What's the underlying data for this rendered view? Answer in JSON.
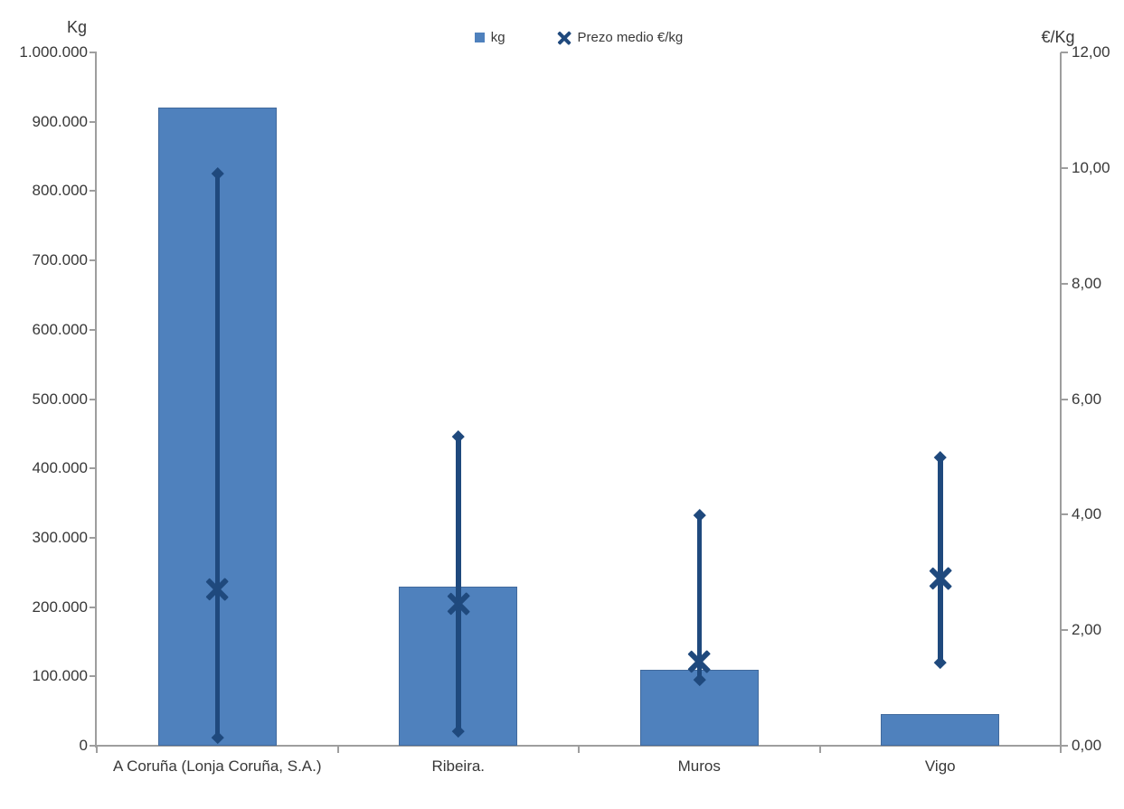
{
  "chart": {
    "legend": [
      {
        "label": "kg",
        "marker": "square",
        "color": "#4F81BD"
      },
      {
        "label": "Prezo medio €/kg",
        "marker": "x",
        "color": "#1F497D"
      }
    ],
    "left_axis": {
      "title": "Kg",
      "tick_labels": [
        "1.000.000",
        "900.000",
        "800.000",
        "700.000",
        "600.000",
        "500.000",
        "400.000",
        "300.000",
        "200.000",
        "100.000",
        "0"
      ]
    },
    "right_axis": {
      "title": "€/Kg",
      "tick_labels": [
        "12,00",
        "10,00",
        "8,00",
        "6,00",
        "4,00",
        "2,00",
        "0,00"
      ]
    },
    "colors": {
      "bar_fill": "#4F81BD",
      "marker": "#1F497D",
      "axis_line": "#9E9E9E",
      "text": "#383838",
      "background": "#FFFFFF"
    }
  },
  "chart_data": {
    "type": "bar",
    "title": "",
    "categories": [
      "A Coruña (Lonja Coruña, S.A.)",
      "Ribeira.",
      "Muros",
      "Vigo"
    ],
    "series": [
      {
        "name": "kg",
        "type": "bar",
        "axis": "left",
        "color": "#4F81BD",
        "values": [
          920000,
          230000,
          110000,
          46000
        ]
      },
      {
        "name": "Prezo medio €/kg",
        "type": "scatter",
        "marker": "x",
        "axis": "right",
        "color": "#1F497D",
        "values": [
          2.7,
          2.45,
          1.45,
          2.9
        ],
        "range_high": [
          9.9,
          5.35,
          4.0,
          5.0
        ],
        "range_low": [
          0.15,
          0.25,
          1.15,
          1.45
        ]
      }
    ],
    "ylabel_left": "Kg",
    "ylabel_right": "€/Kg",
    "left_ylim": [
      0,
      1000000
    ],
    "left_step": 100000,
    "right_ylim": [
      0,
      12
    ],
    "right_step": 2,
    "grid": false,
    "legend_position": "top-center"
  }
}
